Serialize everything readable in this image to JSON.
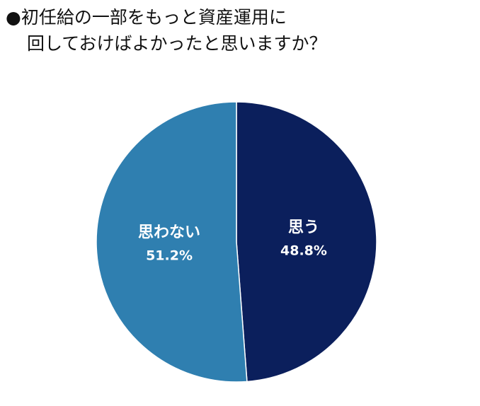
{
  "title": {
    "line1": "●初任給の一部をもっと資産運用に",
    "line2": "回しておけばよかったと思いますか？"
  },
  "colors": {
    "yes": "#0b1f5c",
    "no": "#2f7fb0",
    "label_text": "#ffffff"
  },
  "chart_data": {
    "type": "pie",
    "start": "12 o'clock, clockwise",
    "slices": [
      {
        "label": "思う",
        "value": 48.8,
        "value_label": "48.8%"
      },
      {
        "label": "思わない",
        "value": 51.2,
        "value_label": "51.2%"
      }
    ]
  }
}
